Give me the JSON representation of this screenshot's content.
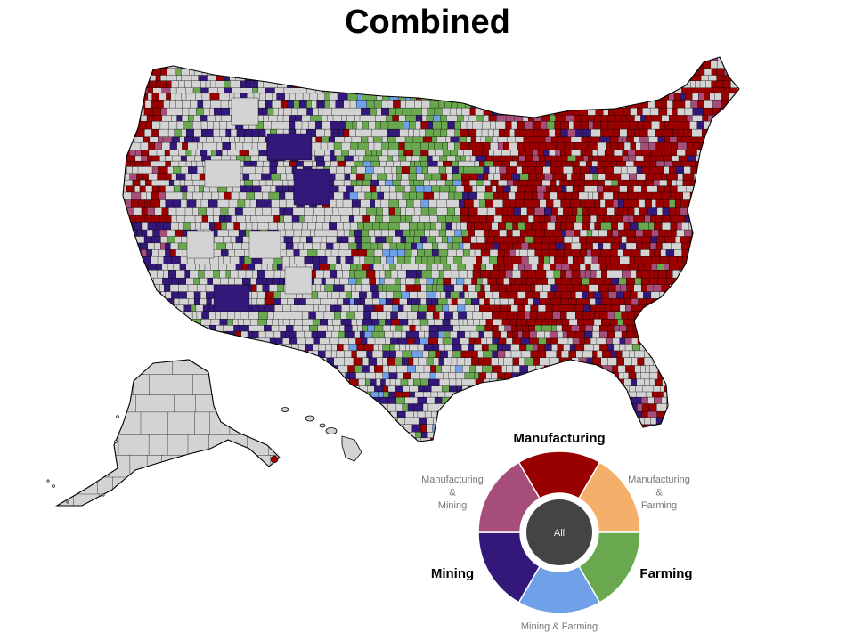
{
  "title": "Combined",
  "colors": {
    "manufacturing": "#990000",
    "manufacturing_farming": "#f4b06a",
    "farming": "#69a84f",
    "mining_farming": "#6fa0e8",
    "mining": "#33187a",
    "manufacturing_mining": "#a64d79",
    "all": "#444444",
    "none": "#d3d3d3"
  },
  "legend": {
    "center_label": "All",
    "segments": [
      {
        "key": "manufacturing",
        "label_lines": [
          "Manufacturing"
        ],
        "emphasis": "bold"
      },
      {
        "key": "manufacturing_farming",
        "label_lines": [
          "Manufacturing",
          "&",
          "Farming"
        ],
        "emphasis": "light"
      },
      {
        "key": "farming",
        "label_lines": [
          "Farming"
        ],
        "emphasis": "bold"
      },
      {
        "key": "mining_farming",
        "label_lines": [
          "Mining & Farming"
        ],
        "emphasis": "light"
      },
      {
        "key": "mining",
        "label_lines": [
          "Mining"
        ],
        "emphasis": "bold"
      },
      {
        "key": "manufacturing_mining",
        "label_lines": [
          "Manufacturing",
          "&",
          "Mining"
        ],
        "emphasis": "light"
      }
    ]
  }
}
